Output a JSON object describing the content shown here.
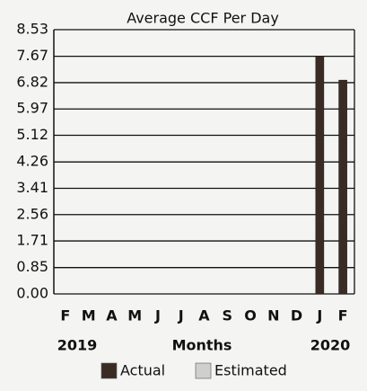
{
  "chart_data": {
    "type": "bar",
    "title": "Average CCF Per Day",
    "categories": [
      "F",
      "M",
      "A",
      "M",
      "J",
      "J",
      "A",
      "S",
      "O",
      "N",
      "D",
      "J",
      "F"
    ],
    "series": [
      {
        "name": "Actual",
        "color": "#3b2b25",
        "values": [
          null,
          null,
          null,
          null,
          null,
          null,
          null,
          null,
          null,
          null,
          null,
          7.67,
          6.9
        ]
      },
      {
        "name": "Estimated",
        "color": "#cfcfcf",
        "values": [
          null,
          null,
          null,
          null,
          null,
          null,
          null,
          null,
          null,
          null,
          null,
          null,
          null
        ]
      }
    ],
    "x_label": "Months",
    "year_labels": [
      "2019",
      "2020"
    ],
    "ylim": [
      0,
      8.53
    ],
    "yticks": [
      {
        "value": 0,
        "label": "0.00"
      },
      0.85,
      1.71,
      2.56,
      3.41,
      4.26,
      5.12,
      5.97,
      6.82,
      7.67,
      8.53
    ],
    "grid": true
  }
}
